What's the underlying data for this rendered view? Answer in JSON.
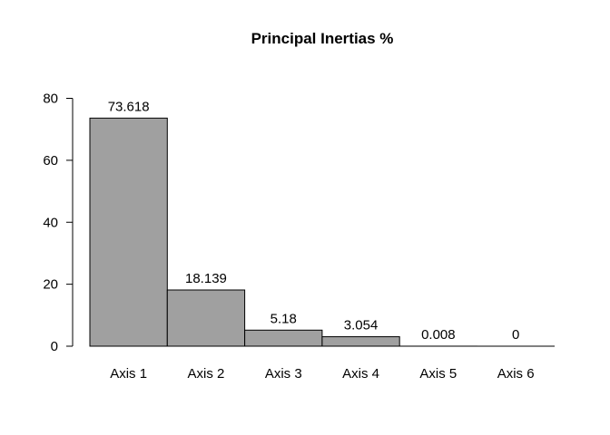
{
  "chart_data": {
    "type": "bar",
    "title": "Principal Inertias %",
    "xlabel": "",
    "ylabel": "",
    "categories": [
      "Axis 1",
      "Axis 2",
      "Axis 3",
      "Axis 4",
      "Axis 5",
      "Axis 6"
    ],
    "values": [
      73.618,
      18.139,
      5.18,
      3.054,
      0.008,
      0
    ],
    "value_labels": [
      "73.618",
      "18.139",
      "5.18",
      "3.054",
      "0.008",
      "0"
    ],
    "yticks": [
      0,
      20,
      40,
      60,
      80
    ],
    "ylim": [
      0,
      80
    ],
    "grid": false,
    "legend": "none",
    "bar_color": "#a0a0a0",
    "bar_edge_color": "#000000"
  }
}
